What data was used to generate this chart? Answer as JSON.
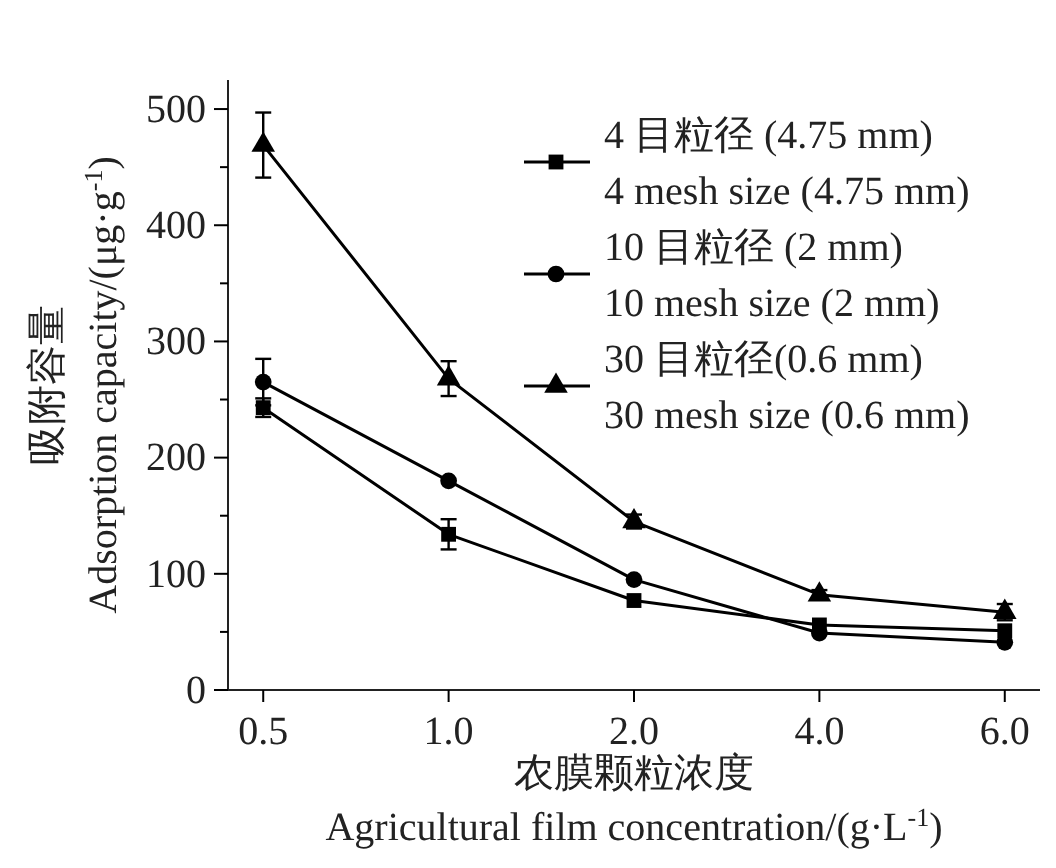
{
  "chart_data": {
    "type": "line",
    "xlabel": "农膜颗粒浓度\nAgricultural film concentration/(g·L$^{-1}$)",
    "ylabel": "吸附容量\nAdsorption capacity/(μg·g$^{-1}$)",
    "categories": [
      "0.5",
      "1.0",
      "2.0",
      "4.0",
      "6.0"
    ],
    "ylim": [
      0,
      525
    ],
    "yticks": [
      0,
      {
        "value": 50,
        "label": null
      },
      100,
      {
        "value": 150,
        "label": null
      },
      200,
      {
        "value": 250,
        "label": null
      },
      300,
      {
        "value": 350,
        "label": null
      },
      400,
      {
        "value": 450,
        "label": null
      },
      500
    ],
    "legend": "top right",
    "grid": false,
    "line_style": "solid",
    "series": [
      {
        "name": "4 目粒径 (4.75 mm)\n4 mesh size (4.75 mm)",
        "color": "#000000",
        "marker": "square",
        "values": [
          243,
          134,
          77,
          56,
          51
        ],
        "errors": [
          8,
          13,
          null,
          null,
          null
        ]
      },
      {
        "name": "10 目粒径 (2 mm)\n10 mesh size (2 mm)",
        "color": "#000000",
        "marker": "circle",
        "values": [
          265,
          180,
          95,
          49,
          41
        ],
        "errors": [
          20,
          null,
          null,
          null,
          null
        ]
      },
      {
        "name": "30 目粒径(0.6 mm)\n30 mesh size (0.6 mm)",
        "color": "#000000",
        "marker": "triangle",
        "values": [
          469,
          268,
          145,
          82,
          67
        ],
        "errors": [
          28,
          15,
          6,
          4,
          7
        ]
      }
    ]
  }
}
